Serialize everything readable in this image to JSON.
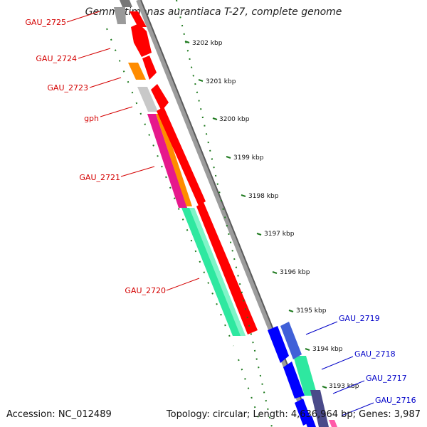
{
  "title": "Gemmatimonas aurantiaca T-27, complete genome",
  "accession": "Accession: NC_012489",
  "topology": "Topology: circular; Length: 4,636,964 bp; Genes: 3,987",
  "colors": {
    "label_forward": "#d40000",
    "label_reverse": "#0000c8",
    "backbone": "#8c8c8c",
    "ticks": "#1f7a1f"
  },
  "ticks": [
    "3202 kbp",
    "3201 kbp",
    "3200 kbp",
    "3199 kbp",
    "3198 kbp",
    "3197 kbp",
    "3196 kbp",
    "3195 kbp",
    "3194 kbp",
    "3193 kbp"
  ],
  "genes_forward": [
    {
      "label": "GAU_2725"
    },
    {
      "label": "GAU_2724"
    },
    {
      "label": "GAU_2723"
    },
    {
      "label": "gph"
    },
    {
      "label": "GAU_2721"
    },
    {
      "label": "GAU_2720"
    }
  ],
  "genes_reverse": [
    {
      "label": "GAU_2719"
    },
    {
      "label": "GAU_2718"
    },
    {
      "label": "GAU_2717"
    },
    {
      "label": "GAU_2716"
    }
  ]
}
